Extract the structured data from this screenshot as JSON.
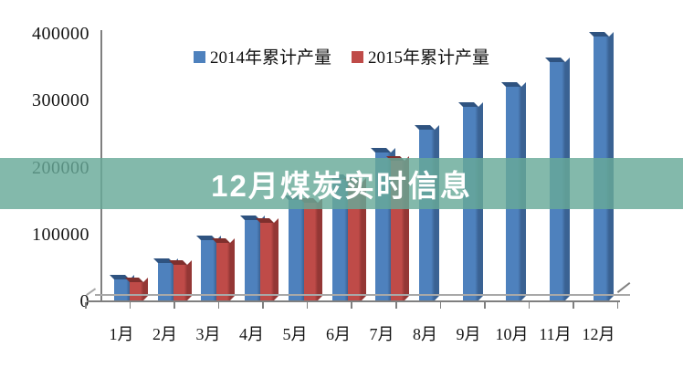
{
  "overlay": {
    "title": "12月煤炭实时信息",
    "background_rgba": "rgba(104,170,153,0.82)"
  },
  "chart_data": {
    "type": "bar",
    "style": "3d-clustered-column",
    "title": "",
    "xlabel": "",
    "ylabel": "",
    "categories": [
      "1月",
      "2月",
      "3月",
      "4月",
      "5月",
      "6月",
      "7月",
      "8月",
      "9月",
      "10月",
      "11月",
      "12月"
    ],
    "series": [
      {
        "name": "2014年累计产量",
        "color": "#4E81BD",
        "side_color": "#3A6293",
        "cap_color": "#2F5380",
        "values": [
          31000,
          56000,
          91000,
          121000,
          151000,
          182000,
          222000,
          256000,
          290000,
          321000,
          358000,
          396000
        ]
      },
      {
        "name": "2015年累计产量",
        "color": "#BF4B48",
        "side_color": "#943735",
        "cap_color": "#7F2F2D",
        "values": [
          28000,
          53000,
          86000,
          117000,
          147000,
          177000,
          210000,
          null,
          null,
          null,
          null,
          null
        ]
      }
    ],
    "ylim": [
      0,
      400000
    ],
    "yticks": [
      "0",
      "100000",
      "200000",
      "300000",
      "400000"
    ],
    "legend_position": "top",
    "grid": false,
    "axis_color": "#7f7f7f"
  }
}
